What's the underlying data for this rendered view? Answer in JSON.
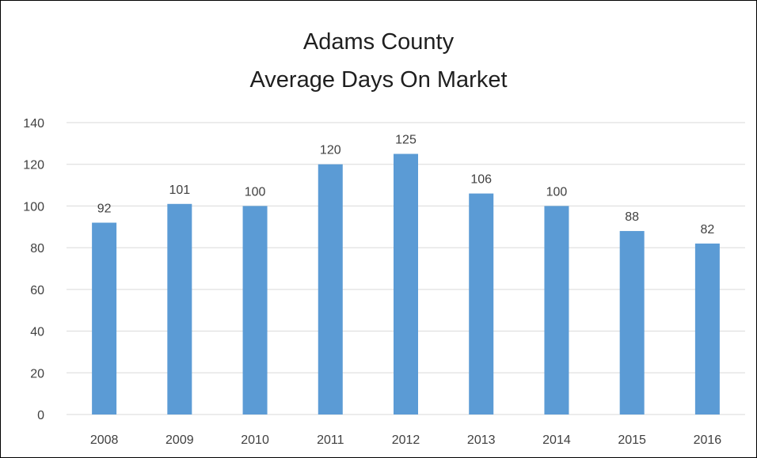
{
  "chart_data": {
    "type": "bar",
    "title": "Adams County",
    "subtitle": "Average Days On Market",
    "categories": [
      "2008",
      "2009",
      "2010",
      "2011",
      "2012",
      "2013",
      "2014",
      "2015",
      "2016"
    ],
    "values": [
      92,
      101,
      100,
      120,
      125,
      106,
      100,
      88,
      82
    ],
    "data_labels": [
      "92",
      "101",
      "100",
      "120",
      "125",
      "106",
      "100",
      "88",
      "82"
    ],
    "ylim": [
      0,
      140
    ],
    "yticks": [
      0,
      20,
      40,
      60,
      80,
      100,
      120,
      140
    ],
    "xlabel": "",
    "ylabel": "",
    "grid": true,
    "legend": "none",
    "bar_color": "#5b9bd5",
    "grid_color": "#d9d9d9"
  }
}
